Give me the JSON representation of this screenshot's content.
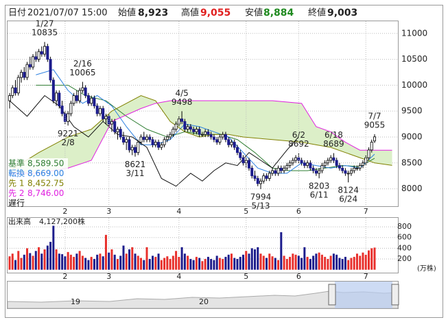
{
  "header": {
    "date_label": "日付",
    "date": "2021/07/07 15:00",
    "fields": [
      {
        "label": "始値",
        "value": "8,923"
      },
      {
        "label": "高値",
        "value": "9,055"
      },
      {
        "label": "安値",
        "value": "8,884"
      },
      {
        "label": "終値",
        "value": "9,003"
      }
    ]
  },
  "chart_data": {
    "type": "candlestick",
    "categories": [
      null,
      null,
      null,
      null,
      null,
      null,
      null,
      null,
      null,
      null,
      null,
      null,
      null,
      null,
      null,
      null,
      null,
      null,
      null,
      "2",
      null,
      null,
      null,
      null,
      null,
      null,
      null,
      null,
      null,
      null,
      null,
      null,
      null,
      null,
      "3",
      null,
      null,
      null,
      null,
      null,
      null,
      null,
      null,
      null,
      null,
      null,
      null,
      null,
      null,
      null,
      null,
      null,
      null,
      null,
      null,
      null,
      null,
      null,
      "4",
      null,
      null,
      null,
      null,
      null,
      null,
      null,
      null,
      null,
      null,
      null,
      null,
      null,
      null,
      null,
      null,
      null,
      null,
      null,
      null,
      null,
      null,
      "5",
      null,
      null,
      null,
      null,
      null,
      null,
      null,
      null,
      null,
      null,
      null,
      null,
      null,
      null,
      null,
      null,
      null,
      "6",
      null,
      null,
      null,
      null,
      null,
      null,
      null,
      null,
      null,
      null,
      null,
      null,
      null,
      null,
      null,
      null,
      null,
      null,
      null,
      null,
      null,
      null,
      "7",
      null,
      null,
      null
    ],
    "ohlc": [
      [
        9700,
        9850,
        9550,
        9800
      ],
      [
        9800,
        10000,
        9750,
        9950
      ],
      [
        9950,
        10100,
        9800,
        9850
      ],
      [
        9850,
        10200,
        9800,
        10150
      ],
      [
        10150,
        10300,
        10050,
        10250
      ],
      [
        10250,
        10350,
        10100,
        10150
      ],
      [
        10150,
        10450,
        10100,
        10400
      ],
      [
        10400,
        10550,
        10300,
        10350
      ],
      [
        10350,
        10600,
        10300,
        10550
      ],
      [
        10550,
        10650,
        10450,
        10500
      ],
      [
        10500,
        10700,
        10450,
        10650
      ],
      [
        10650,
        10750,
        10550,
        10600
      ],
      [
        10600,
        10835,
        10550,
        10750
      ],
      [
        10750,
        10800,
        10450,
        10500
      ],
      [
        10500,
        10550,
        10050,
        10100
      ],
      [
        10100,
        10150,
        9650,
        9700
      ],
      [
        9700,
        9900,
        9600,
        9850
      ],
      [
        9850,
        9900,
        9550,
        9600
      ],
      [
        9600,
        9700,
        9400,
        9450
      ],
      [
        9450,
        9500,
        9250,
        9300
      ],
      [
        9300,
        9500,
        9221,
        9450
      ],
      [
        9450,
        9700,
        9400,
        9650
      ],
      [
        9650,
        9850,
        9600,
        9800
      ],
      [
        9800,
        9900,
        9650,
        9700
      ],
      [
        9700,
        9950,
        9650,
        9900
      ],
      [
        9900,
        10065,
        9850,
        9950
      ],
      [
        9950,
        10000,
        9750,
        9800
      ],
      [
        9800,
        9850,
        9600,
        9650
      ],
      [
        9650,
        9800,
        9600,
        9750
      ],
      [
        9750,
        9800,
        9550,
        9600
      ],
      [
        9600,
        9650,
        9400,
        9450
      ],
      [
        9450,
        9600,
        9400,
        9550
      ],
      [
        9550,
        9600,
        9300,
        9350
      ],
      [
        9350,
        9450,
        9250,
        9400
      ],
      [
        9400,
        9450,
        9200,
        9250
      ],
      [
        9250,
        9350,
        9100,
        9300
      ],
      [
        9300,
        9350,
        9050,
        9100
      ],
      [
        9100,
        9200,
        8950,
        9150
      ],
      [
        9150,
        9200,
        8950,
        9000
      ],
      [
        9000,
        9100,
        8850,
        8900
      ],
      [
        8900,
        9000,
        8750,
        8950
      ],
      [
        8950,
        9000,
        8700,
        8750
      ],
      [
        8750,
        8850,
        8650,
        8800
      ],
      [
        8800,
        8850,
        8621,
        8700
      ],
      [
        8700,
        8950,
        8650,
        8900
      ],
      [
        8900,
        9050,
        8850,
        9000
      ],
      [
        9000,
        9100,
        8900,
        8950
      ],
      [
        8950,
        9050,
        8900,
        9000
      ],
      [
        9000,
        9050,
        8900,
        8950
      ],
      [
        8950,
        9000,
        8800,
        8850
      ],
      [
        8850,
        8950,
        8800,
        8900
      ],
      [
        8900,
        8950,
        8750,
        8800
      ],
      [
        8800,
        8900,
        8750,
        8850
      ],
      [
        8850,
        9000,
        8800,
        8950
      ],
      [
        8950,
        9050,
        8900,
        9000
      ],
      [
        9000,
        9100,
        8950,
        9050
      ],
      [
        9050,
        9200,
        9000,
        9150
      ],
      [
        9150,
        9300,
        9100,
        9250
      ],
      [
        9250,
        9400,
        9200,
        9350
      ],
      [
        9350,
        9498,
        9250,
        9300
      ],
      [
        9300,
        9350,
        9100,
        9150
      ],
      [
        9150,
        9250,
        9100,
        9200
      ],
      [
        9200,
        9250,
        9100,
        9150
      ],
      [
        9150,
        9200,
        9050,
        9100
      ],
      [
        9100,
        9200,
        9050,
        9150
      ],
      [
        9150,
        9200,
        9000,
        9050
      ],
      [
        9050,
        9100,
        9000,
        9050
      ],
      [
        9050,
        9150,
        9000,
        9100
      ],
      [
        9100,
        9150,
        9000,
        9050
      ],
      [
        9050,
        9100,
        8950,
        9000
      ],
      [
        9000,
        9050,
        8900,
        8950
      ],
      [
        8950,
        9000,
        8850,
        8900
      ],
      [
        8900,
        9050,
        8850,
        9000
      ],
      [
        9000,
        9100,
        8950,
        9050
      ],
      [
        9050,
        9100,
        8900,
        8950
      ],
      [
        8950,
        9000,
        8800,
        8850
      ],
      [
        8850,
        8950,
        8800,
        8900
      ],
      [
        8900,
        8950,
        8750,
        8800
      ],
      [
        8800,
        8850,
        8650,
        8700
      ],
      [
        8700,
        8750,
        8550,
        8600
      ],
      [
        8600,
        8650,
        8450,
        8500
      ],
      [
        8500,
        8600,
        8400,
        8550
      ],
      [
        8550,
        8600,
        8350,
        8400
      ],
      [
        8400,
        8450,
        8200,
        8250
      ],
      [
        8250,
        8350,
        8150,
        8200
      ],
      [
        8200,
        8250,
        8050,
        8100
      ],
      [
        8100,
        8200,
        7994,
        8150
      ],
      [
        8150,
        8300,
        8100,
        8250
      ],
      [
        8250,
        8300,
        8150,
        8200
      ],
      [
        8200,
        8350,
        8150,
        8300
      ],
      [
        8300,
        8400,
        8250,
        8350
      ],
      [
        8350,
        8400,
        8250,
        8300
      ],
      [
        8300,
        8450,
        8250,
        8400
      ],
      [
        8400,
        8450,
        8300,
        8350
      ],
      [
        8350,
        8450,
        8300,
        8400
      ],
      [
        8400,
        8500,
        8350,
        8450
      ],
      [
        8450,
        8550,
        8400,
        8500
      ],
      [
        8500,
        8600,
        8450,
        8550
      ],
      [
        8550,
        8650,
        8500,
        8600
      ],
      [
        8600,
        8692,
        8500,
        8550
      ],
      [
        8550,
        8600,
        8450,
        8500
      ],
      [
        8500,
        8550,
        8400,
        8450
      ],
      [
        8450,
        8550,
        8400,
        8500
      ],
      [
        8500,
        8550,
        8350,
        8400
      ],
      [
        8400,
        8450,
        8300,
        8350
      ],
      [
        8350,
        8400,
        8250,
        8300
      ],
      [
        8300,
        8400,
        8203,
        8350
      ],
      [
        8350,
        8500,
        8300,
        8450
      ],
      [
        8450,
        8550,
        8400,
        8500
      ],
      [
        8500,
        8600,
        8450,
        8550
      ],
      [
        8550,
        8650,
        8500,
        8600
      ],
      [
        8600,
        8689,
        8500,
        8550
      ],
      [
        8550,
        8600,
        8400,
        8450
      ],
      [
        8450,
        8500,
        8350,
        8400
      ],
      [
        8400,
        8450,
        8300,
        8350
      ],
      [
        8350,
        8400,
        8250,
        8300
      ],
      [
        8300,
        8350,
        8124,
        8300
      ],
      [
        8300,
        8400,
        8250,
        8350
      ],
      [
        8350,
        8450,
        8300,
        8400
      ],
      [
        8400,
        8450,
        8350,
        8400
      ],
      [
        8400,
        8500,
        8350,
        8450
      ],
      [
        8450,
        8550,
        8400,
        8500
      ],
      [
        8500,
        8650,
        8450,
        8600
      ],
      [
        8600,
        8800,
        8550,
        8750
      ],
      [
        8750,
        8950,
        8700,
        8900
      ],
      [
        8923,
        9055,
        8884,
        9003
      ]
    ],
    "up_color": "#ffffff",
    "down_color": "#1c1c8c",
    "ylim": [
      7664,
      11235
    ],
    "yticks": [
      8000,
      8500,
      9000,
      9500,
      10000,
      10500,
      11000
    ],
    "grid": true,
    "cloud_color": "#dcefc8",
    "lines": [
      {
        "name": "基準",
        "color": "#2e7d32",
        "value_label": "8,589.50",
        "x": [
          9,
          20,
          26,
          33,
          40,
          47,
          54,
          60,
          66,
          72,
          78,
          84,
          90,
          96,
          102,
          108,
          114,
          120,
          125
        ],
        "values": [
          10000,
          10000,
          9800,
          9700,
          9400,
          9150,
          9000,
          9100,
          9050,
          9050,
          8950,
          8700,
          8400,
          8350,
          8350,
          8400,
          8450,
          8430,
          8589.5
        ]
      },
      {
        "name": "転換",
        "color": "#2a7fe0",
        "value_label": "8,669.00",
        "x": [
          9,
          15,
          20,
          25,
          30,
          35,
          40,
          45,
          50,
          55,
          60,
          65,
          70,
          75,
          80,
          85,
          90,
          95,
          100,
          105,
          110,
          115,
          120,
          125
        ],
        "values": [
          10200,
          10300,
          9900,
          9650,
          9800,
          9600,
          9200,
          8850,
          8850,
          8950,
          9250,
          9200,
          9100,
          9000,
          8700,
          8400,
          8300,
          8300,
          8500,
          8450,
          8400,
          8450,
          8400,
          8669
        ]
      },
      {
        "name": "先 1",
        "color": "#808000",
        "value_label": "8,452.75",
        "x": [
          0,
          10,
          20,
          28,
          35,
          45,
          50,
          55,
          60,
          65,
          70,
          75,
          80,
          90,
          100,
          105,
          110,
          115,
          120,
          125,
          131
        ],
        "values": [
          8350,
          8700,
          9000,
          9150,
          9500,
          9800,
          9700,
          9300,
          9100,
          9000,
          9050,
          9050,
          9000,
          8950,
          8900,
          8850,
          8800,
          8700,
          8600,
          8500,
          8452.75
        ]
      },
      {
        "name": "先 2",
        "color": "#e020e0",
        "value_label": "8,746.00",
        "x": [
          0,
          10,
          20,
          28,
          35,
          45,
          50,
          55,
          60,
          65,
          70,
          75,
          80,
          90,
          100,
          105,
          110,
          115,
          120,
          125,
          131
        ],
        "values": [
          8300,
          8300,
          8400,
          8550,
          9300,
          9550,
          9650,
          9700,
          9700,
          9700,
          9700,
          9700,
          9700,
          9700,
          9650,
          9200,
          9100,
          8900,
          8746,
          8746,
          8746
        ]
      },
      {
        "name": "遅行",
        "color": "#111111",
        "x": [
          0,
          6,
          12,
          17,
          22,
          27,
          32,
          37,
          42,
          47,
          52,
          57,
          62,
          66,
          70,
          74,
          78,
          82,
          86,
          90,
          95,
          99
        ],
        "values": [
          9700,
          9400,
          9800,
          9600,
          9200,
          9000,
          9300,
          9050,
          9000,
          8800,
          8200,
          8050,
          8300,
          8150,
          8350,
          8500,
          8450,
          8700,
          8550,
          8400,
          8750,
          9003
        ]
      }
    ],
    "annotations": [
      {
        "date": "1/27",
        "value": 10835,
        "x": 12,
        "side": "above"
      },
      {
        "date": "2/16",
        "value": 10065,
        "x": 25,
        "side": "above"
      },
      {
        "date": "2/8",
        "value": 9221,
        "x": 20,
        "side": "below"
      },
      {
        "date": "3/11",
        "value": 8621,
        "x": 43,
        "side": "below"
      },
      {
        "date": "4/5",
        "value": 9498,
        "x": 59,
        "side": "above"
      },
      {
        "date": "5/13",
        "value": 7994,
        "x": 86,
        "side": "below"
      },
      {
        "date": "6/2",
        "value": 8692,
        "x": 99,
        "side": "above"
      },
      {
        "date": "6/11",
        "value": 8203,
        "x": 106,
        "side": "below"
      },
      {
        "date": "6/18",
        "value": 8689,
        "x": 111,
        "side": "above"
      },
      {
        "date": "6/24",
        "value": 8124,
        "x": 116,
        "side": "below"
      },
      {
        "date": "7/7",
        "value": 9055,
        "x": 125,
        "side": "above"
      }
    ],
    "volume": {
      "label": "出来高",
      "total_label": "4,127,200株",
      "unit": "(万株)",
      "up_color": "#e8302c",
      "down_color": "#1c1c8c",
      "ylim": [
        0,
        967
      ],
      "yticks": [
        200,
        400,
        600,
        800
      ],
      "values": [
        250,
        300,
        180,
        350,
        220,
        280,
        400,
        310,
        260,
        350,
        420,
        300,
        380,
        450,
        520,
        820,
        380,
        300,
        290,
        250,
        330,
        280,
        240,
        300,
        350,
        260,
        220,
        180,
        240,
        200,
        280,
        300,
        250,
        650,
        320,
        380,
        280,
        200,
        260,
        450,
        300,
        380,
        420,
        300,
        260,
        220,
        180,
        420,
        200,
        260,
        240,
        300,
        180,
        220,
        250,
        200,
        260,
        350,
        240,
        420,
        300,
        260,
        200,
        180,
        240,
        220,
        160,
        200,
        240,
        200,
        180,
        260,
        220,
        200,
        240,
        280,
        300,
        220,
        200,
        240,
        280,
        350,
        300,
        400,
        380,
        420,
        300,
        260,
        220,
        300,
        250,
        220,
        180,
        700,
        260,
        200,
        240,
        300,
        280,
        260,
        220,
        420,
        240,
        200,
        260,
        300,
        320,
        280,
        240,
        200,
        260,
        300,
        280,
        220,
        200,
        240,
        180,
        220,
        240,
        300,
        260,
        320,
        280,
        360,
        400,
        412.72
      ]
    }
  },
  "navigator": {
    "labels": [
      "19",
      "20"
    ]
  }
}
